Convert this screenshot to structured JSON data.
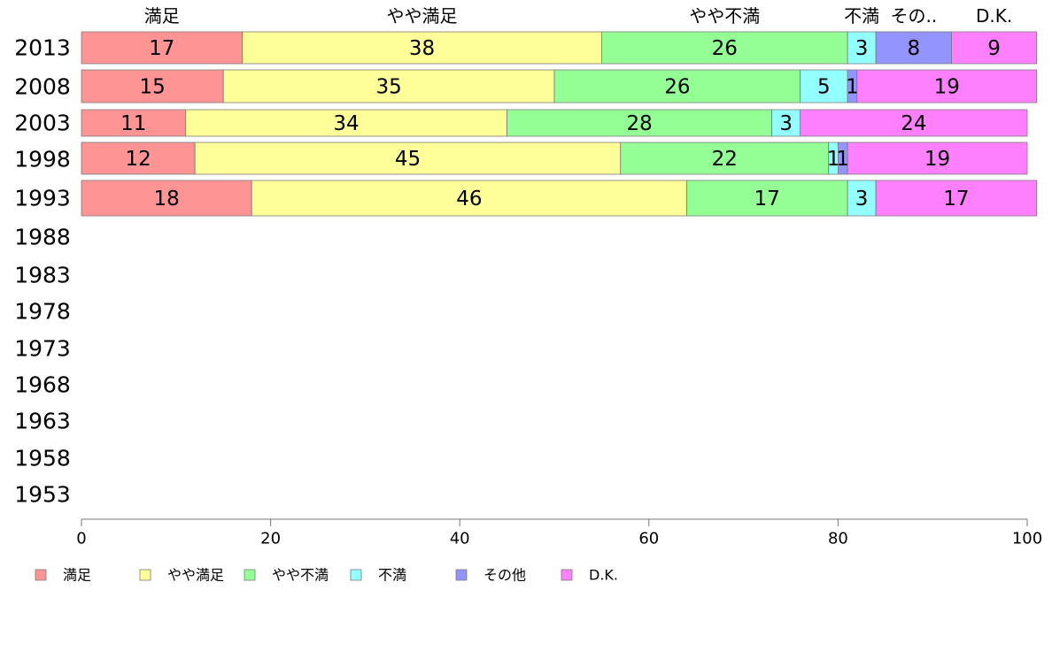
{
  "chart_data": {
    "type": "bar",
    "orientation": "horizontal",
    "stacked": true,
    "categories": [
      "2013",
      "2008",
      "2003",
      "1998",
      "1993",
      "1988",
      "1983",
      "1978",
      "1973",
      "1968",
      "1963",
      "1958",
      "1953"
    ],
    "series": [
      {
        "name": "満足",
        "color": "#ff9494",
        "values": [
          17,
          15,
          11,
          12,
          18,
          null,
          null,
          null,
          null,
          null,
          null,
          null,
          null
        ]
      },
      {
        "name": "やや満足",
        "color": "#ffff99",
        "values": [
          38,
          35,
          34,
          45,
          46,
          null,
          null,
          null,
          null,
          null,
          null,
          null,
          null
        ]
      },
      {
        "name": "やや不満",
        "color": "#94ff94",
        "values": [
          26,
          26,
          28,
          22,
          17,
          null,
          null,
          null,
          null,
          null,
          null,
          null,
          null
        ]
      },
      {
        "name": "不満",
        "color": "#94ffff",
        "values": [
          3,
          5,
          3,
          1,
          3,
          null,
          null,
          null,
          null,
          null,
          null,
          null,
          null
        ]
      },
      {
        "name": "その他",
        "color": "#9494ff",
        "values": [
          8,
          1,
          0,
          1,
          0,
          null,
          null,
          null,
          null,
          null,
          null,
          null,
          null
        ]
      },
      {
        "name": "D.K.",
        "color": "#ff80ff",
        "values": [
          9,
          19,
          24,
          19,
          17,
          null,
          null,
          null,
          null,
          null,
          null,
          null,
          null
        ]
      }
    ],
    "top_labels": [
      "満足",
      "やや満足",
      "やや不満",
      "不満",
      "その..",
      "D.K."
    ],
    "legend_labels": [
      "満足",
      "やや満足",
      "やや不満",
      "不満",
      "その他",
      "D.K."
    ],
    "xlim": [
      0,
      100
    ],
    "xticks": [
      "0",
      "20",
      "40",
      "60",
      "80",
      "100"
    ],
    "legend_position": "bottom-left"
  }
}
